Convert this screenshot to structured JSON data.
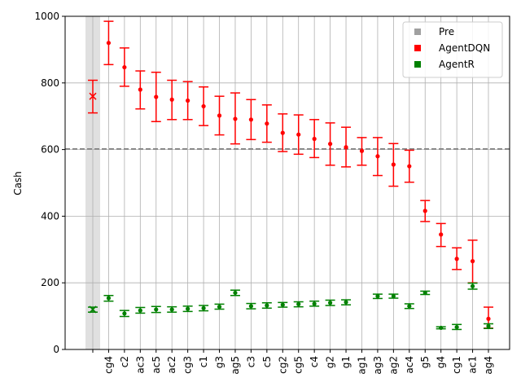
{
  "chart_data": {
    "type": "scatter",
    "title": "",
    "xlabel": "",
    "ylabel": "Cash",
    "ylim": [
      0,
      1000
    ],
    "yticks": [
      0,
      200,
      400,
      600,
      800,
      1000
    ],
    "grid": true,
    "legend_position": "top-right",
    "reference_line": {
      "y": 602,
      "style": "dashed",
      "color": "#808080"
    },
    "highlight_band": {
      "category_index": 0,
      "color": "#e0e0e0"
    },
    "categories": [
      "",
      "cg4",
      "c2",
      "ac3",
      "ac5",
      "ac2",
      "cg3",
      "c1",
      "g3",
      "ag5",
      "c3",
      "c5",
      "cg2",
      "cg5",
      "c4",
      "g2",
      "g1",
      "ag1",
      "ag3",
      "ag2",
      "ac4",
      "g5",
      "g4",
      "cg1",
      "ac1",
      "ag4"
    ],
    "series": [
      {
        "name": "Pre",
        "legend_color": "#a0a0a0",
        "color": "#ff0000",
        "marker": "x",
        "points": [
          {
            "x": 0,
            "y": 760,
            "low": 710,
            "high": 808
          }
        ]
      },
      {
        "name": "AgentDQN",
        "color": "#ff0000",
        "marker": "dot",
        "points": [
          {
            "x": 1,
            "y": 920,
            "low": 855,
            "high": 985
          },
          {
            "x": 2,
            "y": 847,
            "low": 790,
            "high": 905
          },
          {
            "x": 3,
            "y": 780,
            "low": 722,
            "high": 836
          },
          {
            "x": 4,
            "y": 758,
            "low": 684,
            "high": 832
          },
          {
            "x": 5,
            "y": 750,
            "low": 690,
            "high": 808
          },
          {
            "x": 6,
            "y": 747,
            "low": 690,
            "high": 804
          },
          {
            "x": 7,
            "y": 730,
            "low": 672,
            "high": 788
          },
          {
            "x": 8,
            "y": 702,
            "low": 644,
            "high": 760
          },
          {
            "x": 9,
            "y": 692,
            "low": 617,
            "high": 770
          },
          {
            "x": 10,
            "y": 690,
            "low": 630,
            "high": 750
          },
          {
            "x": 11,
            "y": 678,
            "low": 622,
            "high": 734
          },
          {
            "x": 12,
            "y": 650,
            "low": 594,
            "high": 707
          },
          {
            "x": 13,
            "y": 645,
            "low": 586,
            "high": 704
          },
          {
            "x": 14,
            "y": 632,
            "low": 576,
            "high": 690
          },
          {
            "x": 15,
            "y": 617,
            "low": 553,
            "high": 680
          },
          {
            "x": 16,
            "y": 607,
            "low": 548,
            "high": 667
          },
          {
            "x": 17,
            "y": 596,
            "low": 553,
            "high": 636
          },
          {
            "x": 18,
            "y": 580,
            "low": 522,
            "high": 636
          },
          {
            "x": 19,
            "y": 555,
            "low": 490,
            "high": 618
          },
          {
            "x": 20,
            "y": 550,
            "low": 502,
            "high": 598
          },
          {
            "x": 21,
            "y": 416,
            "low": 384,
            "high": 447
          },
          {
            "x": 22,
            "y": 345,
            "low": 309,
            "high": 378
          },
          {
            "x": 23,
            "y": 272,
            "low": 240,
            "high": 305
          },
          {
            "x": 24,
            "y": 265,
            "low": 200,
            "high": 328
          },
          {
            "x": 25,
            "y": 92,
            "low": 64,
            "high": 127
          }
        ]
      },
      {
        "name": "AgentR",
        "color": "#008000",
        "marker": "dot",
        "points": [
          {
            "x": 0,
            "y": 120,
            "low": 112,
            "high": 127,
            "marker": "x"
          },
          {
            "x": 1,
            "y": 154,
            "low": 145,
            "high": 162
          },
          {
            "x": 2,
            "y": 108,
            "low": 99,
            "high": 117
          },
          {
            "x": 3,
            "y": 117,
            "low": 109,
            "high": 126
          },
          {
            "x": 4,
            "y": 120,
            "low": 111,
            "high": 129
          },
          {
            "x": 5,
            "y": 120,
            "low": 112,
            "high": 128
          },
          {
            "x": 6,
            "y": 122,
            "low": 114,
            "high": 130
          },
          {
            "x": 7,
            "y": 124,
            "low": 116,
            "high": 132
          },
          {
            "x": 8,
            "y": 128,
            "low": 121,
            "high": 136
          },
          {
            "x": 9,
            "y": 170,
            "low": 162,
            "high": 178
          },
          {
            "x": 10,
            "y": 130,
            "low": 122,
            "high": 138
          },
          {
            "x": 11,
            "y": 132,
            "low": 124,
            "high": 140
          },
          {
            "x": 12,
            "y": 134,
            "low": 127,
            "high": 141
          },
          {
            "x": 13,
            "y": 136,
            "low": 128,
            "high": 143
          },
          {
            "x": 14,
            "y": 137,
            "low": 130,
            "high": 145
          },
          {
            "x": 15,
            "y": 140,
            "low": 132,
            "high": 148
          },
          {
            "x": 16,
            "y": 142,
            "low": 134,
            "high": 149
          },
          {
            "x": 18,
            "y": 160,
            "low": 153,
            "high": 166
          },
          {
            "x": 19,
            "y": 160,
            "low": 154,
            "high": 166
          },
          {
            "x": 20,
            "y": 130,
            "low": 123,
            "high": 137
          },
          {
            "x": 21,
            "y": 170,
            "low": 165,
            "high": 175
          },
          {
            "x": 22,
            "y": 65,
            "low": 62,
            "high": 68
          },
          {
            "x": 23,
            "y": 67,
            "low": 60,
            "high": 75
          },
          {
            "x": 24,
            "y": 190,
            "low": 181,
            "high": 199
          },
          {
            "x": 25,
            "y": 70,
            "low": 63,
            "high": 77
          }
        ]
      }
    ]
  }
}
